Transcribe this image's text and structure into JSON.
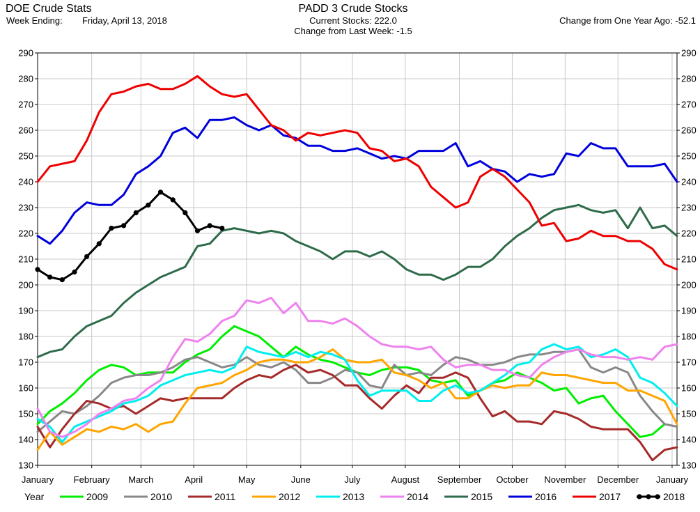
{
  "header": {
    "left_title": "DOE Crude Stats",
    "week_label": "Week Ending:",
    "week_date": "Friday, April 13, 2018",
    "center_title": "PADD 3 Crude Stocks",
    "current_stocks": "Current Stocks: 222.0",
    "change_last_week": "Change from Last Week:  -1.5",
    "change_year_ago": "Change from One Year Ago: -52.1"
  },
  "colors": {
    "2009": "#00ee00",
    "2010": "#888888",
    "2011": "#a52a2a",
    "2012": "#ffa500",
    "2013": "#00eeee",
    "2014": "#ee82ee",
    "2015": "#2e6b4a",
    "2016": "#0000dd",
    "2017": "#ee0000",
    "2018": "#000000"
  },
  "chart_data": {
    "type": "line",
    "title": "PADD 3 Crude Stocks",
    "xlabel": "",
    "ylabel": "",
    "x_unit": "week of year",
    "xlim": [
      1,
      53
    ],
    "ylim": [
      130,
      290
    ],
    "y_ticks": [
      130,
      140,
      150,
      160,
      170,
      180,
      190,
      200,
      210,
      220,
      230,
      240,
      250,
      260,
      270,
      280,
      290
    ],
    "x_tick_labels": [
      "January",
      "February",
      "March",
      "April",
      "May",
      "June",
      "July",
      "August",
      "September",
      "October",
      "November",
      "December",
      "January"
    ],
    "x_tick_positions": [
      1,
      5.4,
      9.4,
      13.7,
      18,
      22.4,
      26.6,
      30.9,
      35.3,
      39.6,
      43.9,
      48.2,
      52.6
    ],
    "grid": true,
    "legend_position": "bottom",
    "legend_title": "Year",
    "series": [
      {
        "name": "2009",
        "values": [
          146,
          151,
          154,
          158,
          163,
          167,
          169,
          168,
          165,
          166,
          166,
          166,
          170,
          173,
          175,
          180,
          184,
          182,
          180,
          176,
          172,
          176,
          173,
          171,
          170,
          168,
          166,
          165,
          167,
          168,
          168,
          167,
          163,
          162,
          163,
          157,
          159,
          162,
          163,
          166,
          164,
          162,
          159,
          160,
          154,
          156,
          157,
          151,
          146,
          141,
          142,
          146
        ]
      },
      {
        "name": "2010",
        "values": [
          143,
          147,
          151,
          150,
          153,
          157,
          162,
          164,
          165,
          165,
          166,
          168,
          171,
          172,
          170,
          168,
          169,
          172,
          169,
          168,
          170,
          167,
          162,
          162,
          164,
          167,
          166,
          161,
          160,
          169,
          165,
          166,
          165,
          169,
          172,
          171,
          169,
          169,
          170,
          172,
          173,
          173,
          174,
          174,
          175,
          168,
          166,
          168,
          166,
          157,
          151,
          146,
          145
        ]
      },
      {
        "name": "2011",
        "values": [
          145,
          137,
          144,
          150,
          155,
          154,
          152,
          153,
          150,
          153,
          156,
          155,
          156,
          156,
          156,
          156,
          160,
          163,
          165,
          164,
          167,
          169,
          166,
          167,
          165,
          161,
          161,
          156,
          152,
          157,
          161,
          158,
          164,
          164,
          166,
          164,
          156,
          149,
          151,
          147,
          147,
          146,
          151,
          150,
          148,
          145,
          144,
          144,
          144,
          139,
          132,
          136,
          137
        ]
      },
      {
        "name": "2012",
        "values": [
          136,
          143,
          138,
          141,
          144,
          143,
          145,
          144,
          146,
          143,
          146,
          147,
          154,
          160,
          161,
          162,
          165,
          167,
          170,
          171,
          171,
          170,
          170,
          172,
          175,
          171,
          170,
          170,
          171,
          166,
          165,
          163,
          160,
          162,
          156,
          156,
          159,
          161,
          160,
          161,
          161,
          166,
          165,
          165,
          164,
          163,
          162,
          162,
          159,
          159,
          157,
          155,
          146
        ]
      },
      {
        "name": "2013",
        "values": [
          148,
          145,
          139,
          145,
          147,
          149,
          151,
          154,
          155,
          157,
          161,
          163,
          165,
          166,
          167,
          166,
          168,
          176,
          174,
          173,
          172,
          174,
          172,
          174,
          173,
          171,
          163,
          157,
          159,
          159,
          159,
          155,
          155,
          159,
          161,
          158,
          159,
          162,
          165,
          169,
          170,
          175,
          177,
          175,
          176,
          172,
          173,
          175,
          172,
          164,
          162,
          158,
          153
        ]
      },
      {
        "name": "2014",
        "values": [
          152,
          143,
          141,
          143,
          146,
          150,
          152,
          155,
          156,
          160,
          163,
          172,
          179,
          178,
          181,
          186,
          188,
          194,
          193,
          195,
          189,
          193,
          186,
          186,
          185,
          187,
          184,
          180,
          177,
          176,
          176,
          175,
          176,
          171,
          168,
          169,
          169,
          167,
          167,
          165,
          164,
          169,
          172,
          174,
          175,
          173,
          172,
          172,
          171,
          172,
          171,
          176,
          177
        ]
      },
      {
        "name": "2015",
        "values": [
          172,
          174,
          175,
          180,
          184,
          186,
          188,
          193,
          197,
          200,
          203,
          205,
          207,
          215,
          216,
          221,
          222,
          221,
          220,
          221,
          220,
          217,
          215,
          213,
          210,
          213,
          213,
          211,
          213,
          210,
          206,
          204,
          204,
          202,
          204,
          207,
          207,
          210,
          215,
          219,
          222,
          226,
          229,
          230,
          231,
          229,
          228,
          229,
          222,
          230,
          222,
          223,
          219
        ]
      },
      {
        "name": "2016",
        "values": [
          219,
          216,
          221,
          228,
          232,
          231,
          231,
          235,
          243,
          246,
          250,
          259,
          261,
          257,
          264,
          264,
          265,
          262,
          260,
          262,
          258,
          257,
          254,
          254,
          252,
          252,
          253,
          251,
          249,
          250,
          249,
          252,
          252,
          252,
          255,
          246,
          248,
          245,
          244,
          240,
          243,
          242,
          243,
          251,
          250,
          255,
          253,
          253,
          246,
          246,
          246,
          247,
          240
        ]
      },
      {
        "name": "2017",
        "values": [
          240,
          246,
          247,
          248,
          256,
          267,
          274,
          275,
          277,
          278,
          276,
          276,
          278,
          281,
          277,
          274,
          273,
          274,
          268,
          262,
          260,
          256,
          259,
          258,
          259,
          260,
          259,
          253,
          252,
          248,
          249,
          246,
          238,
          234,
          230,
          232,
          242,
          245,
          242,
          237,
          232,
          223,
          224,
          217,
          218,
          221,
          219,
          219,
          217,
          217,
          214,
          208,
          206
        ]
      },
      {
        "name": "2018",
        "values": [
          206,
          203,
          202,
          205,
          211,
          216,
          222,
          223,
          228,
          231,
          236,
          233,
          228,
          221,
          223,
          222
        ]
      }
    ]
  }
}
